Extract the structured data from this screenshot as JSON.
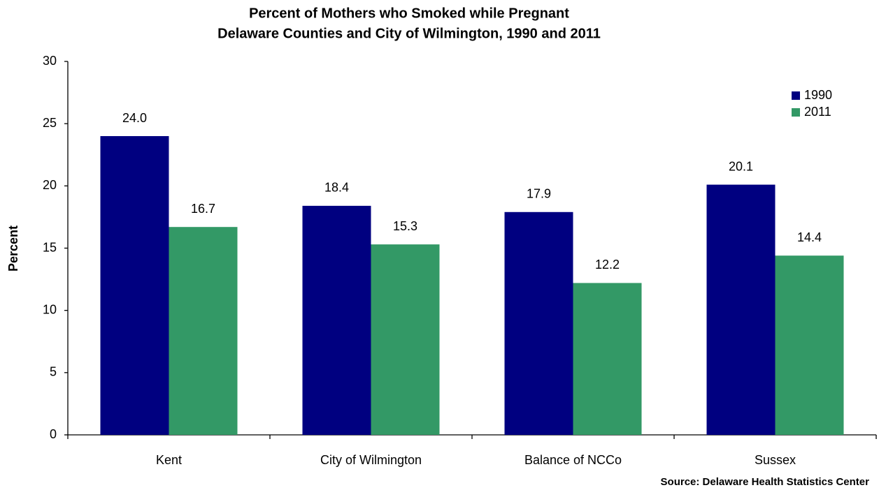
{
  "chart_data": {
    "type": "bar",
    "title": [
      "Percent of Mothers who Smoked while Pregnant",
      "Delaware Counties and City of Wilmington,  1990 and 2011"
    ],
    "ylabel": "Percent",
    "source": "Source: Delaware Health Statistics Center",
    "categories": [
      "Kent",
      "City of Wilmington",
      "Balance of NCCo",
      "Sussex"
    ],
    "series": [
      {
        "name": "1990",
        "color": "#000080",
        "values": [
          24.0,
          18.4,
          17.9,
          20.1
        ],
        "value_labels": [
          "24.0",
          "18.4",
          "17.9",
          "20.1"
        ]
      },
      {
        "name": "2011",
        "color": "#339966",
        "values": [
          16.7,
          15.3,
          12.2,
          14.4
        ],
        "value_labels": [
          "16.7",
          "15.3",
          "12.2",
          "14.4"
        ]
      }
    ],
    "ylim": [
      0,
      30
    ],
    "yticks": [
      0,
      5,
      10,
      15,
      20,
      25,
      30
    ],
    "grid": false,
    "legend": "top-right"
  }
}
